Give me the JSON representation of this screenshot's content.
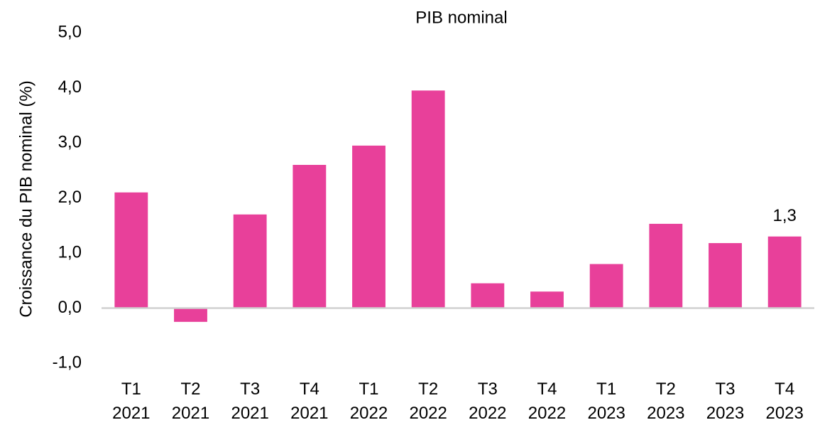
{
  "chart_data": {
    "type": "bar",
    "title": "PIB nominal",
    "y_label": "Croissance du PIB nominal (%)",
    "categories": [
      "T1 2021",
      "T2 2021",
      "T3 2021",
      "T4 2021",
      "T1 2022",
      "T2 2022",
      "T3 2022",
      "T4 2022",
      "T1 2023",
      "T2 2023",
      "T3 2023",
      "T4 2023"
    ],
    "values": [
      2.1,
      -0.25,
      1.7,
      2.6,
      2.95,
      3.95,
      0.45,
      0.3,
      0.8,
      1.53,
      1.18,
      1.3
    ],
    "value_labels": [
      null,
      null,
      null,
      null,
      null,
      null,
      null,
      null,
      null,
      null,
      null,
      "1,3"
    ],
    "color": "#e8409a",
    "ylim": [
      -1,
      5
    ],
    "yticks": [
      {
        "value": -1,
        "label": "-1,0"
      },
      {
        "value": 0,
        "label": "0,0"
      },
      {
        "value": 1,
        "label": "1,0"
      },
      {
        "value": 2,
        "label": "2,0"
      },
      {
        "value": 3,
        "label": "3,0"
      },
      {
        "value": 4,
        "label": "4,0"
      },
      {
        "value": 5,
        "label": "5,0"
      }
    ],
    "grid": false
  }
}
